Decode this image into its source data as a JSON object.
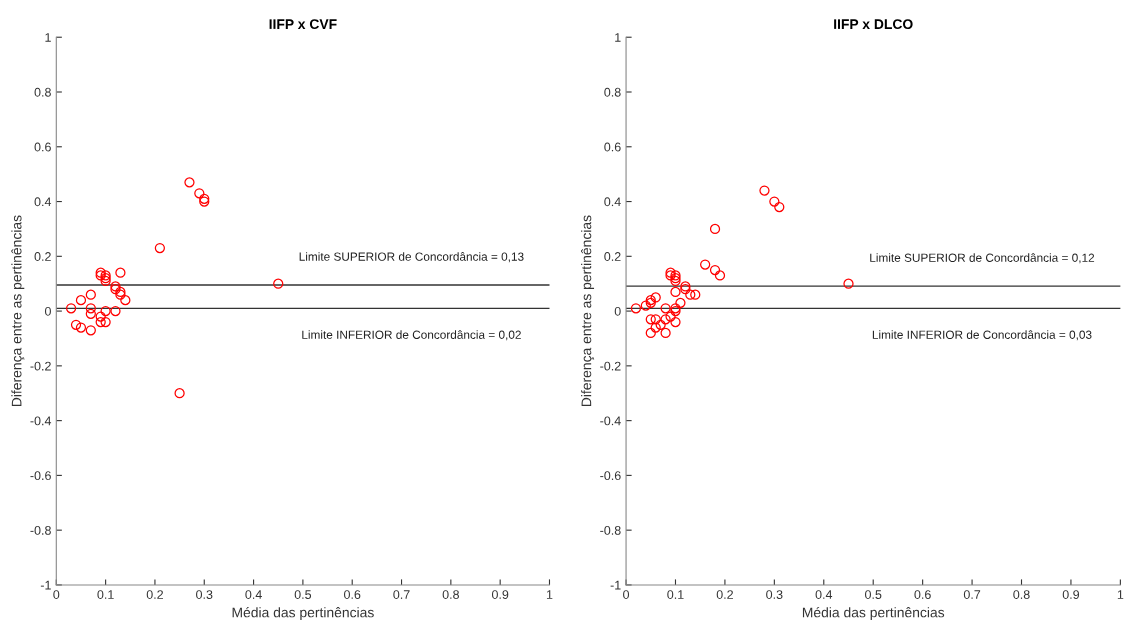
{
  "chart_data": [
    {
      "type": "scatter",
      "title": "IIFP x CVF",
      "xlabel": "Média das pertinências",
      "ylabel": "Diferença entre as pertinências",
      "marker": "circle",
      "grid": false,
      "xlim": [
        0,
        1
      ],
      "ylim": [
        -1,
        1
      ],
      "xticks": [
        0,
        0.1,
        0.2,
        0.3,
        0.4,
        0.5,
        0.6,
        0.7,
        0.8,
        0.9,
        1
      ],
      "yticks": [
        -1,
        -0.8,
        -0.6,
        -0.4,
        -0.2,
        0,
        0.2,
        0.4,
        0.6,
        0.8,
        1
      ],
      "series": [
        {
          "color": "#ff0000",
          "x": [
            0.27,
            0.29,
            0.3,
            0.3,
            0.21,
            0.09,
            0.09,
            0.1,
            0.1,
            0.1,
            0.13,
            0.12,
            0.12,
            0.13,
            0.13,
            0.14,
            0.45,
            0.07,
            0.05,
            0.03,
            0.07,
            0.07,
            0.1,
            0.12,
            0.09,
            0.09,
            0.1,
            0.04,
            0.05,
            0.07,
            0.25
          ],
          "values": [
            0.47,
            0.43,
            0.41,
            0.4,
            0.23,
            0.14,
            0.13,
            0.13,
            0.12,
            0.11,
            0.14,
            0.09,
            0.08,
            0.07,
            0.06,
            0.04,
            0.1,
            0.06,
            0.04,
            0.01,
            0.01,
            -0.01,
            0,
            0,
            -0.02,
            -0.04,
            -0.04,
            -0.05,
            -0.06,
            -0.07,
            -0.3
          ]
        }
      ],
      "annotations": [
        "Limite SUPERIOR de Concordância = 0,13",
        "Limite INFERIOR de Concordância = 0,02"
      ],
      "ref_lines": [
        {
          "axis": "y",
          "value": 0.095,
          "color": "#333333"
        },
        {
          "axis": "y",
          "value": 0.01,
          "color": "#333333"
        }
      ]
    },
    {
      "type": "scatter",
      "title": "IIFP x DLCO",
      "xlabel": "Média das pertinências",
      "ylabel": "Diferença entre as pertinências",
      "marker": "circle",
      "grid": false,
      "xlim": [
        0,
        1
      ],
      "ylim": [
        -1,
        1
      ],
      "xticks": [
        0,
        0.1,
        0.2,
        0.3,
        0.4,
        0.5,
        0.6,
        0.7,
        0.8,
        0.9,
        1
      ],
      "yticks": [
        -1,
        -0.8,
        -0.6,
        -0.4,
        -0.2,
        0,
        0.2,
        0.4,
        0.6,
        0.8,
        1
      ],
      "series": [
        {
          "color": "#ff0000",
          "x": [
            0.28,
            0.3,
            0.31,
            0.18,
            0.16,
            0.18,
            0.19,
            0.09,
            0.09,
            0.1,
            0.1,
            0.1,
            0.12,
            0.12,
            0.13,
            0.14,
            0.1,
            0.11,
            0.45,
            0.06,
            0.05,
            0.05,
            0.04,
            0.02,
            0.08,
            0.1,
            0.1,
            0.09,
            0.1,
            0.05,
            0.06,
            0.07,
            0.06,
            0.08,
            0.05,
            0.08
          ],
          "values": [
            0.44,
            0.4,
            0.38,
            0.3,
            0.17,
            0.15,
            0.13,
            0.14,
            0.13,
            0.13,
            0.12,
            0.11,
            0.09,
            0.08,
            0.06,
            0.06,
            0.07,
            0.03,
            0.1,
            0.05,
            0.04,
            0.03,
            0.02,
            0.01,
            0.01,
            0.01,
            0,
            -0.02,
            -0.04,
            -0.03,
            -0.03,
            -0.05,
            -0.06,
            -0.03,
            -0.08,
            -0.08
          ]
        }
      ],
      "annotations": [
        "Limite SUPERIOR de Concordância = 0,12",
        "Limite INFERIOR de Concordância = 0,03"
      ],
      "ref_lines": [
        {
          "axis": "y",
          "value": 0.091,
          "color": "#333333"
        },
        {
          "axis": "y",
          "value": 0.01,
          "color": "#333333"
        }
      ]
    }
  ]
}
